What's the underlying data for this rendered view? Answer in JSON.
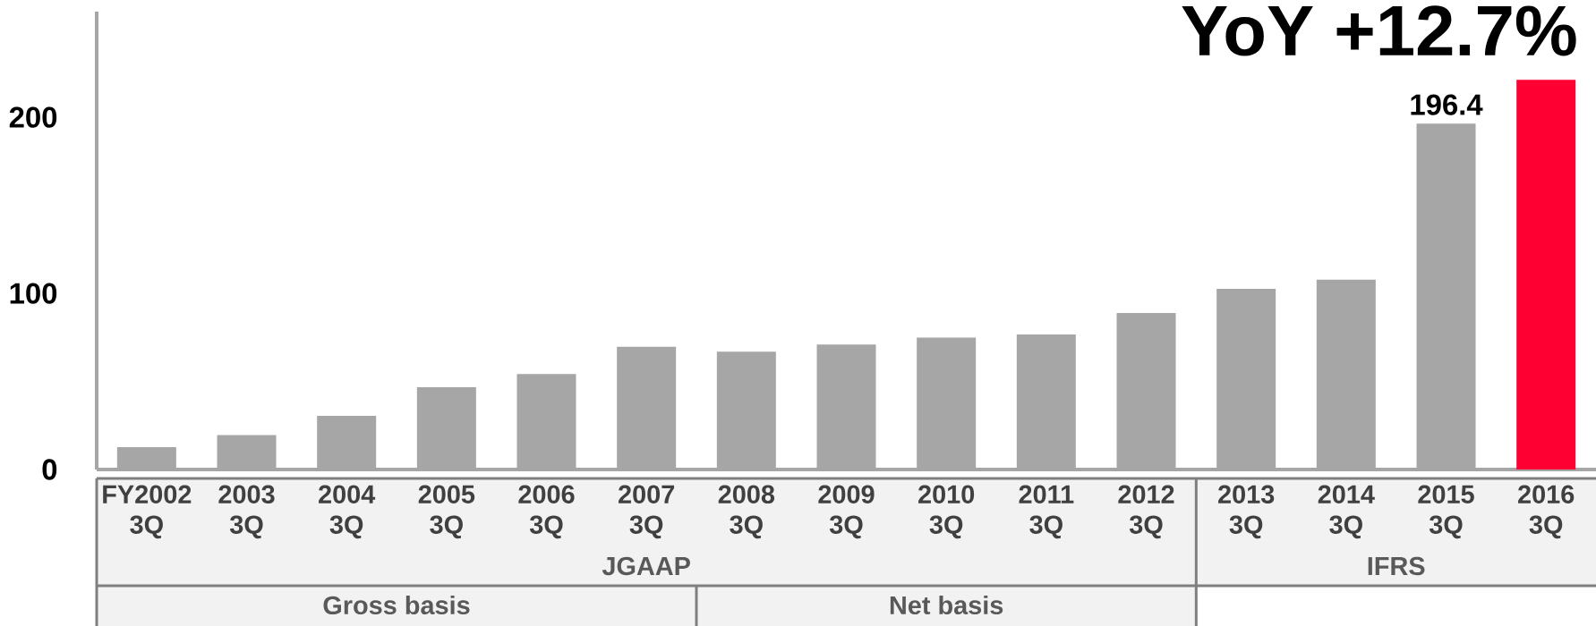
{
  "chart_data": {
    "type": "bar",
    "title": "YoY +12.7%",
    "categories": [
      "FY2002 3Q",
      "2003 3Q",
      "2004 3Q",
      "2005 3Q",
      "2006 3Q",
      "2007 3Q",
      "2008 3Q",
      "2009 3Q",
      "2010 3Q",
      "2011 3Q",
      "2012 3Q",
      "2013 3Q",
      "2014 3Q",
      "2015 3Q",
      "2016 3Q"
    ],
    "values": [
      12.7,
      19.6,
      30.5,
      46.7,
      54.2,
      69.7,
      66.9,
      70.9,
      74.9,
      76.7,
      88.8,
      102.6,
      107.8,
      196.4,
      221.3
    ],
    "colors": [
      "#a6a6a6",
      "#a6a6a6",
      "#a6a6a6",
      "#a6a6a6",
      "#a6a6a6",
      "#a6a6a6",
      "#a6a6a6",
      "#a6a6a6",
      "#a6a6a6",
      "#a6a6a6",
      "#a6a6a6",
      "#a6a6a6",
      "#a6a6a6",
      "#a6a6a6",
      "#ff0033"
    ],
    "value_labels": [
      null,
      null,
      null,
      null,
      null,
      null,
      null,
      null,
      null,
      null,
      null,
      null,
      null,
      "196.4",
      null
    ],
    "ylim": [
      0,
      260
    ],
    "yticks": [
      0,
      100,
      200
    ],
    "annotations": [
      "JGAAP",
      "IFRS",
      "Gross basis",
      "Net basis"
    ]
  }
}
